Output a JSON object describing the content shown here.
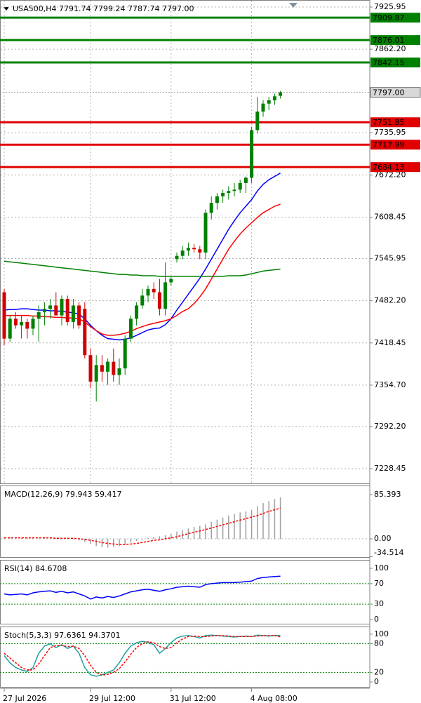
{
  "chart_data": [
    {
      "type": "candlestick",
      "title": "USA500,H4  7791.74 7799.24 7787.74 7797.00",
      "categories": [
        "27 Jul 2026",
        null,
        null,
        null,
        null,
        null,
        null,
        null,
        null,
        null,
        null,
        null,
        null,
        null,
        null,
        "29 Jul 12:00",
        null,
        null,
        null,
        null,
        null,
        null,
        null,
        null,
        null,
        null,
        null,
        null,
        null,
        "31 Jul 12:00",
        null,
        null,
        null,
        null,
        null,
        null,
        null,
        null,
        null,
        null,
        null,
        null,
        null,
        "4 Aug 08:00",
        null,
        null,
        null,
        null,
        null
      ],
      "ohlc": [
        [
          7495,
          7500,
          7415,
          7425
        ],
        [
          7425,
          7460,
          7420,
          7455
        ],
        [
          7455,
          7465,
          7440,
          7445
        ],
        [
          7445,
          7460,
          7425,
          7450
        ],
        [
          7450,
          7455,
          7425,
          7440
        ],
        [
          7440,
          7460,
          7430,
          7455
        ],
        [
          7455,
          7475,
          7420,
          7465
        ],
        [
          7465,
          7480,
          7445,
          7470
        ],
        [
          7470,
          7485,
          7455,
          7475
        ],
        [
          7475,
          7495,
          7460,
          7460
        ],
        [
          7460,
          7490,
          7445,
          7485
        ],
        [
          7485,
          7490,
          7445,
          7450
        ],
        [
          7450,
          7485,
          7440,
          7475
        ],
        [
          7475,
          7480,
          7440,
          7445
        ],
        [
          7470,
          7480,
          7395,
          7400
        ],
        [
          7400,
          7410,
          7350,
          7360
        ],
        [
          7360,
          7400,
          7330,
          7385
        ],
        [
          7385,
          7400,
          7360,
          7375
        ],
        [
          7375,
          7395,
          7355,
          7390
        ],
        [
          7390,
          7410,
          7360,
          7370
        ],
        [
          7370,
          7395,
          7355,
          7380
        ],
        [
          7380,
          7430,
          7370,
          7425
        ],
        [
          7425,
          7460,
          7420,
          7455
        ],
        [
          7455,
          7480,
          7445,
          7475
        ],
        [
          7475,
          7500,
          7470,
          7490
        ],
        [
          7490,
          7505,
          7480,
          7500
        ],
        [
          7500,
          7510,
          7485,
          7495
        ],
        [
          7495,
          7515,
          7460,
          7470
        ],
        [
          7470,
          7540,
          7460,
          7510
        ],
        [
          7510,
          7518,
          7505,
          7515
        ],
        [
          7545,
          7555,
          7540,
          7550
        ],
        [
          7550,
          7565,
          7545,
          7558
        ],
        [
          7558,
          7570,
          7550,
          7562
        ],
        [
          7562,
          7568,
          7555,
          7560
        ],
        [
          7560,
          7565,
          7545,
          7555
        ],
        [
          7555,
          7620,
          7545,
          7615
        ],
        [
          7615,
          7640,
          7605,
          7630
        ],
        [
          7630,
          7645,
          7620,
          7640
        ],
        [
          7640,
          7650,
          7630,
          7645
        ],
        [
          7645,
          7655,
          7635,
          7648
        ],
        [
          7648,
          7660,
          7640,
          7650
        ],
        [
          7650,
          7665,
          7645,
          7660
        ],
        [
          7660,
          7670,
          7645,
          7668
        ],
        [
          7668,
          7745,
          7660,
          7740
        ],
        [
          7740,
          7790,
          7735,
          7768
        ],
        [
          7768,
          7785,
          7760,
          7780
        ],
        [
          7780,
          7790,
          7770,
          7785
        ],
        [
          7785,
          7795,
          7778,
          7791
        ],
        [
          7791.74,
          7799.24,
          7787.74,
          7797
        ]
      ],
      "up_color": "#008000",
      "down_color": "#d00000",
      "series": [
        {
          "color": "#0000ff",
          "values": [
            7468,
            7469,
            7469,
            7470,
            7470,
            7469,
            7468,
            7468,
            7467,
            7467,
            7466,
            7465,
            7464,
            7462,
            7455,
            7445,
            7437,
            7430,
            7425,
            7424,
            7423,
            7424,
            7426,
            7430,
            7434,
            7438,
            7440,
            7441,
            7446,
            7455,
            7468,
            7480,
            7492,
            7504,
            7516,
            7530,
            7545,
            7560,
            7575,
            7590,
            7603,
            7615,
            7625,
            7635,
            7648,
            7658,
            7665,
            7670,
            7675
          ]
        },
        {
          "color": "#ff0000",
          "values": [
            7460,
            7460,
            7460,
            7460,
            7460,
            7459,
            7459,
            7458,
            7458,
            7457,
            7457,
            7456,
            7456,
            7455,
            7450,
            7443,
            7437,
            7432,
            7430,
            7430,
            7431,
            7433,
            7436,
            7440,
            7443,
            7446,
            7448,
            7450,
            7452,
            7455,
            7460,
            7466,
            7470,
            7478,
            7488,
            7500,
            7515,
            7530,
            7545,
            7560,
            7572,
            7583,
            7592,
            7600,
            7608,
            7615,
            7620,
            7625,
            7628
          ]
        },
        {
          "color": "#008000",
          "values": [
            7542,
            7541,
            7540,
            7539,
            7538,
            7537,
            7536,
            7535,
            7534,
            7533,
            7532,
            7531,
            7530,
            7529,
            7528,
            7527,
            7526,
            7525,
            7524,
            7523,
            7522,
            7522,
            7521,
            7521,
            7520,
            7520,
            7520,
            7519,
            7519,
            7519,
            7519,
            7519,
            7519,
            7519,
            7519,
            7519,
            7519,
            7519,
            7519,
            7520,
            7520,
            7520,
            7521,
            7523,
            7525,
            7527,
            7528,
            7529,
            7530
          ]
        }
      ],
      "levels": [
        {
          "value": 7909.87,
          "color": "#008000"
        },
        {
          "value": 7876.01,
          "color": "#008000"
        },
        {
          "value": 7842.15,
          "color": "#008000"
        },
        {
          "value": 7751.85,
          "color": "#e00000"
        },
        {
          "value": 7717.99,
          "color": "#e00000"
        },
        {
          "value": 7684.13,
          "color": "#e00000"
        }
      ],
      "current": {
        "value": 7797,
        "label": "7797.00"
      },
      "ylim": [
        7205.15,
        7936.55
      ],
      "yticks": [
        7925.95,
        {
          "value": 7862.2,
          "label": "7862.20"
        },
        7735.95,
        {
          "value": 7672.2,
          "label": "7672.20"
        },
        7608.45,
        7545.95,
        {
          "value": 7482.2,
          "label": "7482.20"
        },
        7418.45,
        {
          "value": 7354.7,
          "label": "7354.70"
        },
        {
          "value": 7292.2,
          "label": "7292.20"
        },
        7228.45
      ],
      "grid": true
    },
    {
      "type": "macd",
      "title": "MACD(12,26,9) 79.943 59.417",
      "values": [
        3,
        3,
        2,
        2,
        2,
        2,
        1,
        1,
        1,
        1,
        0,
        0,
        -1,
        -2,
        -6,
        -10,
        -14,
        -16,
        -17,
        -16,
        -14,
        -11,
        -7,
        -4,
        -1,
        2,
        4,
        5,
        7,
        10,
        14,
        17,
        20,
        23,
        25,
        28,
        33,
        37,
        41,
        45,
        48,
        51,
        53,
        56,
        63,
        69,
        73,
        77,
        79.943
      ],
      "color": "#a0a0a0",
      "series": [
        {
          "color": "#ff0000",
          "style": "dashed",
          "values": [
            2,
            2,
            2,
            2,
            2,
            2,
            2,
            2,
            2,
            1,
            1,
            1,
            1,
            0,
            -1,
            -3,
            -5,
            -7,
            -9,
            -10,
            -11,
            -11,
            -10,
            -9,
            -7,
            -5,
            -3,
            -2,
            0,
            2,
            4,
            7,
            10,
            13,
            15,
            18,
            21,
            24,
            27,
            30,
            33,
            36,
            39,
            42,
            45,
            49,
            53,
            56,
            59.417
          ]
        }
      ],
      "ylim": [
        -36.6,
        103
      ],
      "yticks": [
        85.393,
        {
          "value": 0,
          "label": "0.00"
        },
        -34.514
      ]
    },
    {
      "type": "line",
      "title": "RSI(14) 84.6708",
      "series": [
        {
          "color": "#0000ff",
          "values": [
            50,
            48,
            49,
            50,
            48,
            52,
            54,
            55,
            56,
            53,
            55,
            52,
            54,
            50,
            46,
            40,
            44,
            42,
            45,
            43,
            46,
            50,
            54,
            56,
            58,
            59,
            57,
            55,
            58,
            60,
            63,
            64,
            65,
            64,
            63,
            68,
            70,
            71,
            72,
            72,
            72,
            73,
            74,
            75,
            80,
            82,
            83,
            84,
            84.6708
          ]
        }
      ],
      "levels": [
        70,
        30
      ],
      "level_color": "#008000",
      "ylim": [
        -9.6,
        116.4
      ],
      "yticks": [
        100,
        70,
        30,
        0
      ]
    },
    {
      "type": "line",
      "title": "Stoch(5,3,3) 97.6361 94.3701",
      "series": [
        {
          "color": "#20a0a0",
          "values": [
            55,
            40,
            30,
            25,
            22,
            30,
            60,
            75,
            80,
            72,
            78,
            70,
            75,
            60,
            30,
            15,
            12,
            15,
            20,
            25,
            40,
            60,
            75,
            82,
            85,
            83,
            78,
            60,
            70,
            82,
            92,
            96,
            97,
            95,
            92,
            97,
            98,
            97,
            96,
            95,
            94,
            95,
            96,
            95,
            98,
            97,
            96,
            97,
            97.6361
          ]
        },
        {
          "color": "#ff0000",
          "style": "dashed",
          "values": [
            60,
            50,
            40,
            30,
            25,
            25,
            38,
            55,
            72,
            76,
            77,
            74,
            75,
            70,
            55,
            35,
            20,
            14,
            16,
            20,
            28,
            42,
            58,
            72,
            80,
            84,
            82,
            74,
            70,
            72,
            82,
            90,
            95,
            96,
            95,
            95,
            96,
            97,
            97,
            96,
            95,
            95,
            95,
            95,
            96,
            97,
            97,
            97,
            94.3701
          ]
        }
      ],
      "levels": [
        80,
        20
      ],
      "level_color": "#008000",
      "ylim": [
        -11.8,
        116
      ],
      "yticks": [
        100,
        80,
        20,
        0
      ]
    }
  ]
}
